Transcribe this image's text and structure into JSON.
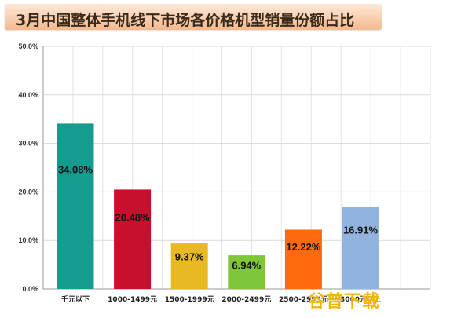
{
  "chart_data": {
    "type": "bar",
    "title": "3月中国整体手机线下市场各价格机型销量份额占比",
    "categories": [
      "千元以下",
      "1000-1499元",
      "1500-1999元",
      "2000-2499元",
      "2500-2999元",
      "3000元以上"
    ],
    "values": [
      34.08,
      20.48,
      9.37,
      6.94,
      12.22,
      16.91
    ],
    "data_labels": [
      "34.08%",
      "20.48%",
      "9.37%",
      "6.94%",
      "12.22%",
      "16.91%"
    ],
    "colors": [
      "#169c8f",
      "#c8102e",
      "#e8b923",
      "#7ec63a",
      "#ff6a0d",
      "#93b3df"
    ],
    "ylim": [
      0,
      50
    ],
    "yticks": [
      "0.0%",
      "10.0%",
      "20.0%",
      "30.0%",
      "40.0%",
      "50.0%"
    ],
    "xlabel": "",
    "ylabel": "",
    "grid": true,
    "legend": "none"
  },
  "watermark": "谷普下载"
}
